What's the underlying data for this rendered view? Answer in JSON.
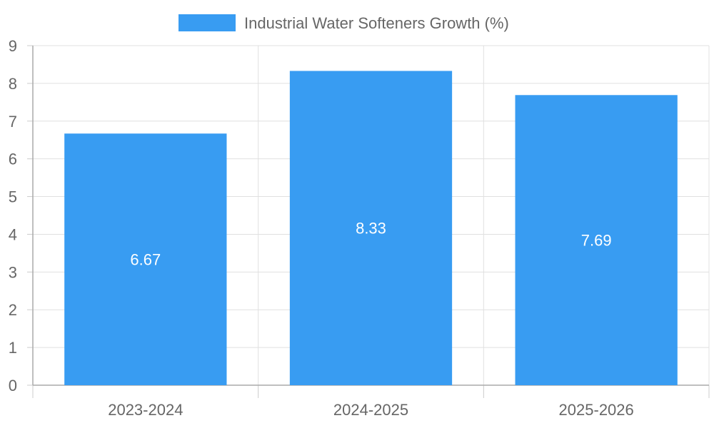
{
  "chart_data": {
    "type": "bar",
    "title": "",
    "xlabel": "",
    "ylabel": "",
    "categories": [
      "2023-2024",
      "2024-2025",
      "2025-2026"
    ],
    "series": [
      {
        "name": "Industrial Water Softeners Growth (%)",
        "values": [
          6.67,
          8.33,
          7.69
        ],
        "color": "#389CF2"
      }
    ],
    "data_labels": [
      "6.67",
      "8.33",
      "7.69"
    ],
    "ylim": [
      0,
      9
    ],
    "yticks": [
      "0",
      "1",
      "2",
      "3",
      "4",
      "5",
      "6",
      "7",
      "8",
      "9"
    ],
    "grid": true,
    "legend": "top-center"
  }
}
